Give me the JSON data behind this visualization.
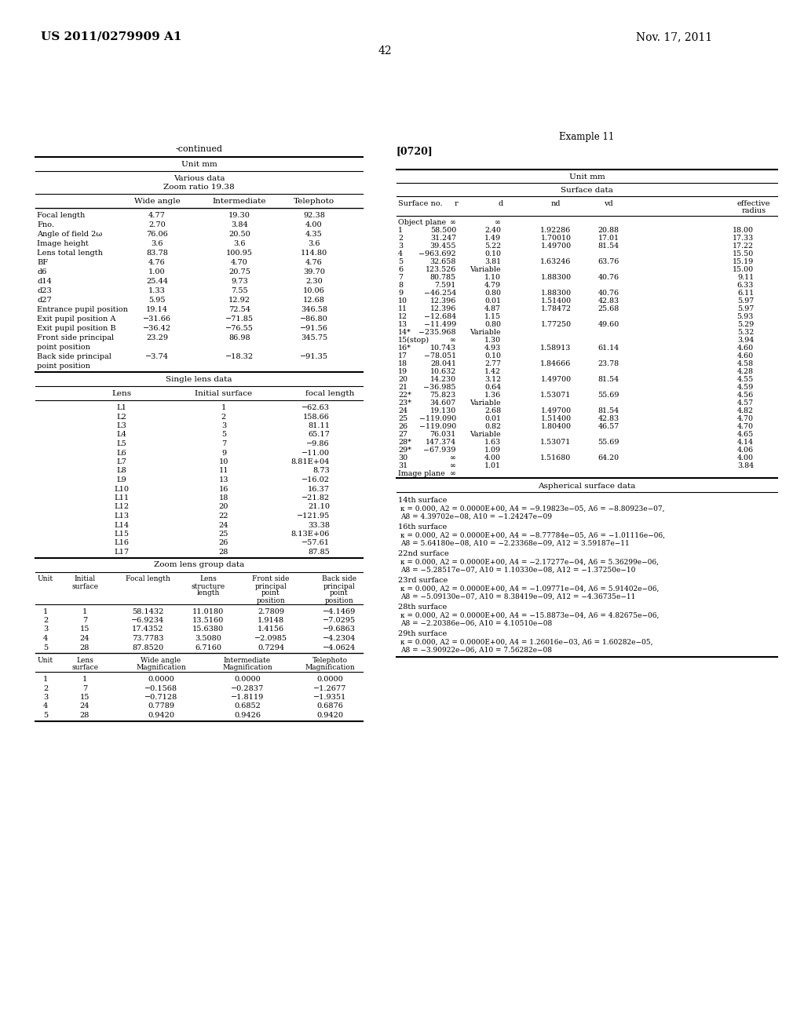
{
  "header_left": "US 2011/0279909 A1",
  "header_right": "Nov. 17, 2011",
  "page_number": "42",
  "left_table_title": "-continued",
  "left_unit": "Unit mm",
  "left_section1_title1": "Various data",
  "left_section1_title2": "Zoom ratio 19.38",
  "left_section1_headers": [
    "",
    "Wide angle",
    "Intermediate",
    "Telephoto"
  ],
  "left_section1_rows": [
    [
      "Focal length",
      "4.77",
      "19.30",
      "92.38"
    ],
    [
      "Fno.",
      "2.70",
      "3.84",
      "4.00"
    ],
    [
      "Angle of field 2ω",
      "76.06",
      "20.50",
      "4.35"
    ],
    [
      "Image height",
      "3.6",
      "3.6",
      "3.6"
    ],
    [
      "Lens total length",
      "83.78",
      "100.95",
      "114.80"
    ],
    [
      "BF",
      "4.76",
      "4.70",
      "4.76"
    ],
    [
      "d6",
      "1.00",
      "20.75",
      "39.70"
    ],
    [
      "d14",
      "25.44",
      "9.73",
      "2.30"
    ],
    [
      "d23",
      "1.33",
      "7.55",
      "10.06"
    ],
    [
      "d27",
      "5.95",
      "12.92",
      "12.68"
    ],
    [
      "Entrance pupil position",
      "19.14",
      "72.54",
      "346.58"
    ],
    [
      "Exit pupil position A",
      "−31.66",
      "−71.85",
      "−86.80"
    ],
    [
      "Exit pupil position B",
      "−36.42",
      "−76.55",
      "−91.56"
    ],
    [
      "Front side principal",
      "23.29",
      "86.98",
      "345.75"
    ],
    [
      "point position",
      "",
      "",
      ""
    ],
    [
      "Back side principal",
      "−3.74",
      "−18.32",
      "−91.35"
    ],
    [
      "point position",
      "",
      "",
      ""
    ]
  ],
  "left_section2_title": "Single lens data",
  "left_section2_headers": [
    "Lens",
    "Initial surface",
    "focal length"
  ],
  "left_section2_rows": [
    [
      "L1",
      "1",
      "−62.63"
    ],
    [
      "L2",
      "2",
      "158.66"
    ],
    [
      "L3",
      "3",
      "81.11"
    ],
    [
      "L4",
      "5",
      "65.17"
    ],
    [
      "L5",
      "7",
      "−9.86"
    ],
    [
      "L6",
      "9",
      "−11.00"
    ],
    [
      "L7",
      "10",
      "8.81E+04"
    ],
    [
      "L8",
      "11",
      "8.73"
    ],
    [
      "L9",
      "13",
      "−16.02"
    ],
    [
      "L10",
      "16",
      "16.37"
    ],
    [
      "L11",
      "18",
      "−21.82"
    ],
    [
      "L12",
      "20",
      "21.10"
    ],
    [
      "L13",
      "22",
      "−121.95"
    ],
    [
      "L14",
      "24",
      "33.38"
    ],
    [
      "L15",
      "25",
      "8.13E+06"
    ],
    [
      "L16",
      "26",
      "−57.61"
    ],
    [
      "L17",
      "28",
      "87.85"
    ]
  ],
  "left_section3_title": "Zoom lens group data",
  "left_section3_headers1_line1": [
    "Unit",
    "Initial",
    "Focal length",
    "Lens",
    "Front side",
    "Back side"
  ],
  "left_section3_headers1_line2": [
    "",
    "surface",
    "",
    "structure",
    "principal",
    "principal"
  ],
  "left_section3_headers1_line3": [
    "",
    "",
    "",
    "length",
    "point",
    "point"
  ],
  "left_section3_headers1_line4": [
    "",
    "",
    "",
    "",
    "position",
    "position"
  ],
  "left_section3_rows1": [
    [
      "1",
      "1",
      "58.1432",
      "11.0180",
      "2.7809",
      "−4.1469"
    ],
    [
      "2",
      "7",
      "−6.9234",
      "13.5160",
      "1.9148",
      "−7.0295"
    ],
    [
      "3",
      "15",
      "17.4352",
      "15.6380",
      "1.4156",
      "−9.6863"
    ],
    [
      "4",
      "24",
      "73.7783",
      "3.5080",
      "−2.0985",
      "−4.2304"
    ],
    [
      "5",
      "28",
      "87.8520",
      "6.7160",
      "0.7294",
      "−4.0624"
    ]
  ],
  "left_section3_headers2_line1": [
    "Unit",
    "Lens",
    "Wide angle",
    "Intermediate",
    "Telephoto"
  ],
  "left_section3_headers2_line2": [
    "",
    "surface",
    "Magnification",
    "Magnification",
    "Magnification"
  ],
  "left_section3_rows2": [
    [
      "1",
      "1",
      "0.0000",
      "0.0000",
      "0.0000"
    ],
    [
      "2",
      "7",
      "−0.1568",
      "−0.2837",
      "−1.2677"
    ],
    [
      "3",
      "15",
      "−0.7128",
      "−1.8119",
      "−1.9351"
    ],
    [
      "4",
      "24",
      "0.7789",
      "0.6852",
      "0.6876"
    ],
    [
      "5",
      "28",
      "0.9420",
      "0.9426",
      "0.9420"
    ]
  ],
  "right_example": "Example 11",
  "right_paragraph": "[0720]",
  "right_unit": "Unit mm",
  "right_section1_title": "Surface data",
  "right_col_headers": [
    "Surface no.",
    "r",
    "d",
    "nd",
    "vd",
    "effective",
    "radius"
  ],
  "right_section1_rows": [
    [
      "Object plane",
      "∞",
      "∞",
      "",
      "",
      ""
    ],
    [
      "1",
      "58.500",
      "2.40",
      "1.92286",
      "20.88",
      "18.00"
    ],
    [
      "2",
      "31.247",
      "1.49",
      "1.70010",
      "17.01",
      "17.33"
    ],
    [
      "3",
      "39.455",
      "5.22",
      "1.49700",
      "81.54",
      "17.22"
    ],
    [
      "4",
      "−963.692",
      "0.10",
      "",
      "",
      "15.50"
    ],
    [
      "5",
      "32.658",
      "3.81",
      "1.63246",
      "63.76",
      "15.19"
    ],
    [
      "6",
      "123.526",
      "Variable",
      "",
      "",
      "15.00"
    ],
    [
      "7",
      "80.785",
      "1.10",
      "1.88300",
      "40.76",
      "9.11"
    ],
    [
      "8",
      "7.591",
      "4.79",
      "",
      "",
      "6.33"
    ],
    [
      "9",
      "−46.254",
      "0.80",
      "1.88300",
      "40.76",
      "6.11"
    ],
    [
      "10",
      "12.396",
      "0.01",
      "1.51400",
      "42.83",
      "5.97"
    ],
    [
      "11",
      "12.396",
      "4.87",
      "1.78472",
      "25.68",
      "5.97"
    ],
    [
      "12",
      "−12.684",
      "1.15",
      "",
      "",
      "5.93"
    ],
    [
      "13",
      "−11.499",
      "0.80",
      "1.77250",
      "49.60",
      "5.29"
    ],
    [
      "14*",
      "−235.968",
      "Variable",
      "",
      "",
      "5.32"
    ],
    [
      "15(stop)",
      "∞",
      "1.30",
      "",
      "",
      "3.94"
    ],
    [
      "16*",
      "10.743",
      "4.93",
      "1.58913",
      "61.14",
      "4.60"
    ],
    [
      "17",
      "−78.051",
      "0.10",
      "",
      "",
      "4.60"
    ],
    [
      "18",
      "28.041",
      "2.77",
      "1.84666",
      "23.78",
      "4.58"
    ],
    [
      "19",
      "10.632",
      "1.42",
      "",
      "",
      "4.28"
    ],
    [
      "20",
      "14.230",
      "3.12",
      "1.49700",
      "81.54",
      "4.55"
    ],
    [
      "21",
      "−36.985",
      "0.64",
      "",
      "",
      "4.59"
    ],
    [
      "22*",
      "75.823",
      "1.36",
      "1.53071",
      "55.69",
      "4.56"
    ],
    [
      "23*",
      "34.607",
      "Variable",
      "",
      "",
      "4.57"
    ],
    [
      "24",
      "19.130",
      "2.68",
      "1.49700",
      "81.54",
      "4.82"
    ],
    [
      "25",
      "−119.090",
      "0.01",
      "1.51400",
      "42.83",
      "4.70"
    ],
    [
      "26",
      "−119.090",
      "0.82",
      "1.80400",
      "46.57",
      "4.70"
    ],
    [
      "27",
      "76.031",
      "Variable",
      "",
      "",
      "4.65"
    ],
    [
      "28*",
      "147.374",
      "1.63",
      "1.53071",
      "55.69",
      "4.14"
    ],
    [
      "29*",
      "−67.939",
      "1.09",
      "",
      "",
      "4.06"
    ],
    [
      "30",
      "∞",
      "4.00",
      "1.51680",
      "64.20",
      "4.00"
    ],
    [
      "31",
      "∞",
      "1.01",
      "",
      "",
      "3.84"
    ],
    [
      "Image plane",
      "∞",
      "",
      "",
      "",
      ""
    ]
  ],
  "right_section2_title": "Aspherical surface data",
  "right_asph_data": [
    {
      "surface": "14th surface",
      "line1": "κ = 0.000, A2 = 0.0000E+00, A4 = −9.19823e−05, A6 = −8.80923e−07,",
      "line2": "A8 = 4.39702e−08, A10 = −1.24247e−09"
    },
    {
      "surface": "16th surface",
      "line1": "κ = 0.000, A2 = 0.0000E+00, A4 = −8.77784e−05, A6 = −1.01116e−06,",
      "line2": "A8 = 5.64180e−08, A10 = −2.23368e−09, A12 = 3.59187e−11"
    },
    {
      "surface": "22nd surface",
      "line1": "κ = 0.000, A2 = 0.0000E+00, A4 = −2.17277e−04, A6 = 5.36299e−06,",
      "line2": "A8 = −5.28517e−07, A10 = 1.10330e−08, A12 = −1.37250e−10"
    },
    {
      "surface": "23rd surface",
      "line1": "κ = 0.000, A2 = 0.0000E+00, A4 = −1.09771e−04, A6 = 5.91402e−06,",
      "line2": "A8 = −5.09130e−07, A10 = 8.38419e−09, A12 = −4.36735e−11"
    },
    {
      "surface": "28th surface",
      "line1": "κ = 0.000, A2 = 0.0000E+00, A4 = −15.8873e−04, A6 = 4.82675e−06,",
      "line2": "A8 = −2.20386e−06, A10 = 4.10510e−08"
    },
    {
      "surface": "29th surface",
      "line1": "κ = 0.000, A2 = 0.0000E+00, A4 = 1.26016e−03, A6 = 1.60282e−05,",
      "line2": "A8 = −3.90922e−06, A10 = 7.56282e−08"
    }
  ]
}
